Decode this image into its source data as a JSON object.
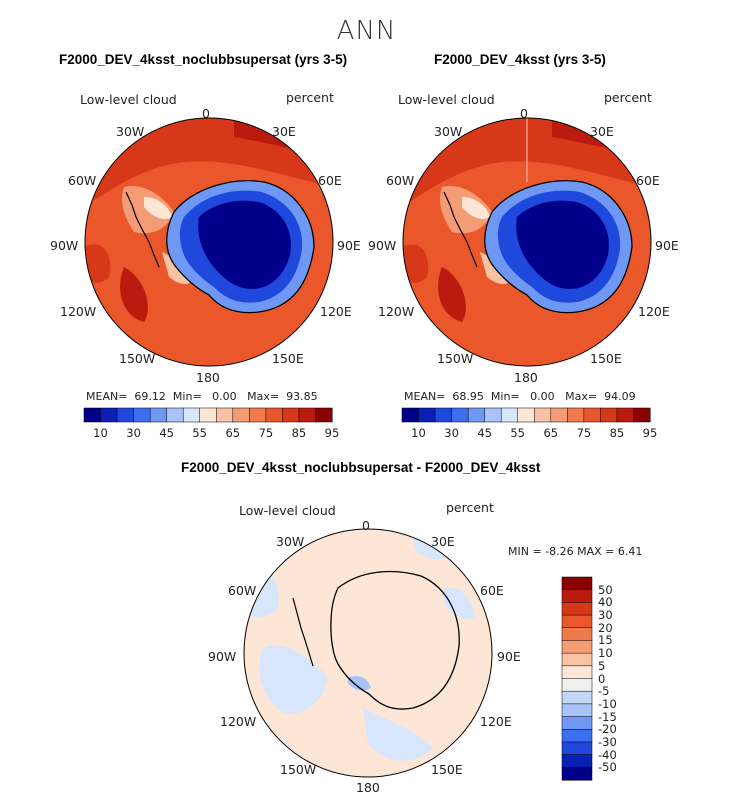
{
  "season": "ANN",
  "colors": {
    "scale": [
      "#00008b",
      "#0a1fb4",
      "#1f48dc",
      "#3c6ef0",
      "#6f98f5",
      "#a7c3f8",
      "#d8e6fb",
      "#fde6d6",
      "#f9c2a3",
      "#f49c75",
      "#ef7a4c",
      "#e9572a",
      "#d8381a",
      "#b91c0e",
      "#8b0000"
    ],
    "ocean_high": "#d8381a",
    "ocean_mid": "#e9572a",
    "ocean_max": "#b91c0e",
    "land_low": "#00008b",
    "diff_positive": "#fde6d6",
    "diff_negative": "#d8e6fb",
    "diff_anomaly": "#a7c3f8"
  },
  "panels": [
    {
      "title": "F2000_DEV_4ksst_noclubbsupersat (yrs 3-5)",
      "field_label": "Low-level cloud",
      "units": "percent",
      "stats": {
        "mean_label": "MEAN=",
        "mean": "69.12",
        "min_label": "Min=",
        "min": "0.00",
        "max_label": "Max=",
        "max": "93.85"
      }
    },
    {
      "title": "F2000_DEV_4ksst (yrs 3-5)",
      "field_label": "Low-level cloud",
      "units": "percent",
      "stats": {
        "mean_label": "MEAN=",
        "mean": "68.95",
        "min_label": "Min=",
        "min": "0.00",
        "max_label": "Max=",
        "max": "94.09"
      }
    }
  ],
  "colorbar_labels": [
    "10",
    "30",
    "45",
    "55",
    "65",
    "75",
    "85",
    "95"
  ],
  "diff": {
    "title": "F2000_DEV_4ksst_noclubbsupersat - F2000_DEV_4ksst",
    "field_label": "Low-level cloud",
    "units": "percent",
    "minmax": "MIN =  -8.26 MAX =   6.41",
    "colorbar_labels": [
      "50",
      "40",
      "30",
      "20",
      "15",
      "10",
      "5",
      "0",
      "-5",
      "-10",
      "-15",
      "-20",
      "-30",
      "-40",
      "-50"
    ],
    "colorbar_colors": [
      "#8b0000",
      "#b91c0e",
      "#d8381a",
      "#e9572a",
      "#ef7a4c",
      "#f49c75",
      "#f9c2a3",
      "#fde6d6",
      "#f0f0f0",
      "#c6d8f8",
      "#a7c3f8",
      "#6f98f5",
      "#3c6ef0",
      "#1f48dc",
      "#0a1fb4",
      "#00008b"
    ]
  },
  "lon_labels": [
    "0",
    "30E",
    "60E",
    "90E",
    "120E",
    "150E",
    "180",
    "150W",
    "120W",
    "90W",
    "60W",
    "30W"
  ]
}
